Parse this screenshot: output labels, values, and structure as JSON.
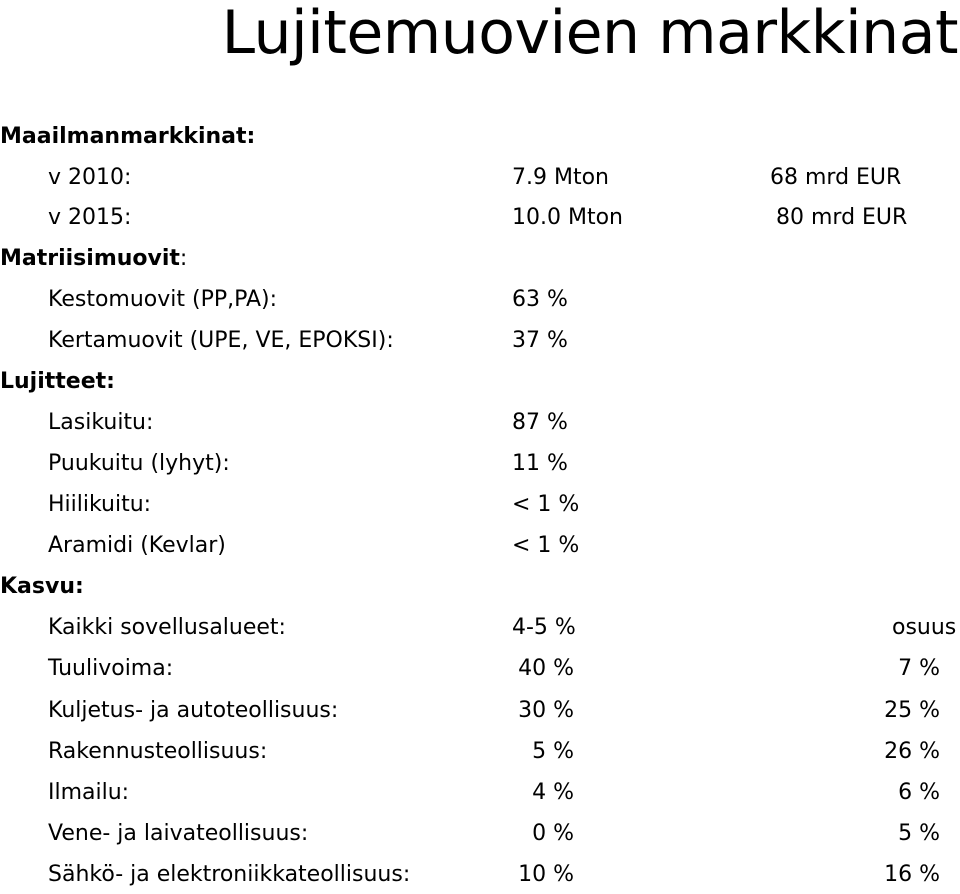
{
  "title": "Lujitemuovien markkinat",
  "world_markets": {
    "heading": "Maailmanmarkkinat:",
    "rows": [
      {
        "label": "v 2010:",
        "volume": "7.9 Mton",
        "value": "68 mrd EUR"
      },
      {
        "label": "v 2015:",
        "volume": "10.0 Mton",
        "value": "80 mrd EUR"
      }
    ]
  },
  "matrix": {
    "heading": "Matriisimuovit",
    "heading_suffix": ":",
    "rows": [
      {
        "label": "Kestomuovit (PP,PA):",
        "value": "63 %"
      },
      {
        "label": "Kertamuovit (UPE, VE, EPOKSI):",
        "value": "37 %"
      }
    ]
  },
  "reinforcements": {
    "heading": "Lujitteet:",
    "rows": [
      {
        "label": "Lasikuitu:",
        "value": "87 %"
      },
      {
        "label": "Puukuitu (lyhyt):",
        "value": "11 %"
      },
      {
        "label": "Hiilikuitu:",
        "value": "< 1 %"
      },
      {
        "label": "Aramidi (Kevlar)",
        "value": "< 1 %"
      }
    ]
  },
  "growth": {
    "heading": "Kasvu:",
    "share_header": "osuus",
    "rows": [
      {
        "label": "Kaikki sovellusalueet:",
        "growth": "4-5 %"
      },
      {
        "label": "Tuulivoima:",
        "growth": "40 %",
        "share": "7 %"
      },
      {
        "label": "Kuljetus- ja autoteollisuus:",
        "growth": "30 %",
        "share": "25 %"
      },
      {
        "label": "Rakennusteollisuus:",
        "growth": "5 %",
        "share": "26 %"
      },
      {
        "label": "Ilmailu:",
        "growth": "4 %",
        "share": "6 %"
      },
      {
        "label": "Vene- ja laivateollisuus:",
        "growth": "0 %",
        "share": "5 %"
      },
      {
        "label": "Sähkö- ja elektroniikkateollisuus:",
        "growth": "10 %",
        "share": "16 %"
      }
    ]
  }
}
